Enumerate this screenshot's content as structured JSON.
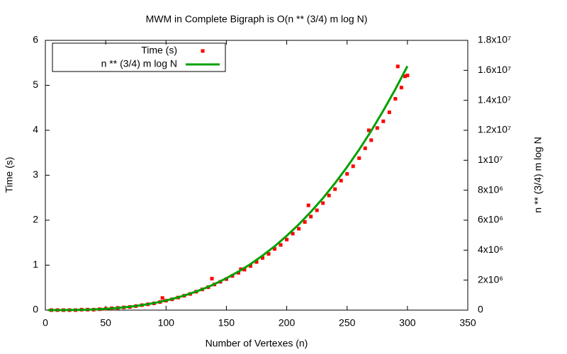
{
  "chart_data": {
    "type": "scatter",
    "title": "MWM in Complete Bigraph is O(n ** (3/4) m log N)",
    "x_label": "Number of Vertexes (n)",
    "y_label": "Time (s)",
    "y2_label": "n ** (3/4) m log N",
    "xlim": [
      0,
      350
    ],
    "xticks": [
      0,
      50,
      100,
      150,
      200,
      250,
      300,
      350
    ],
    "ylim": [
      0,
      6
    ],
    "yticks": [
      0,
      1,
      2,
      3,
      4,
      5,
      6
    ],
    "y2lim": [
      0,
      18000000
    ],
    "y2ticks": [
      {
        "value": 0,
        "label": "0"
      },
      {
        "value": 2000000,
        "label": "2x10⁶"
      },
      {
        "value": 4000000,
        "label": "4x10⁶"
      },
      {
        "value": 6000000,
        "label": "6x10⁶"
      },
      {
        "value": 8000000,
        "label": "8x10⁶"
      },
      {
        "value": 10000000,
        "label": "1x10⁷"
      },
      {
        "value": 12000000,
        "label": "1.2x10⁷"
      },
      {
        "value": 14000000,
        "label": "1.4x10⁷"
      },
      {
        "value": 16000000,
        "label": "1.6x10⁷"
      },
      {
        "value": 18000000,
        "label": "1.8x10⁷"
      }
    ],
    "legend": "top-left",
    "series": [
      {
        "name": "Time (s)",
        "color": "#ff0000",
        "type": "scatter",
        "x": [
          5,
          10,
          15,
          20,
          25,
          30,
          35,
          40,
          45,
          50,
          55,
          60,
          65,
          70,
          75,
          80,
          85,
          90,
          95,
          97,
          100,
          105,
          110,
          115,
          120,
          125,
          130,
          135,
          138,
          140,
          145,
          150,
          155,
          160,
          162,
          165,
          170,
          175,
          180,
          185,
          190,
          195,
          200,
          205,
          210,
          215,
          218,
          220,
          225,
          230,
          235,
          240,
          245,
          250,
          255,
          260,
          265,
          268,
          270,
          275,
          280,
          285,
          290,
          292,
          295,
          298,
          300
        ],
        "values": [
          0,
          0,
          0,
          0,
          0,
          0.01,
          0.01,
          0.01,
          0.02,
          0.03,
          0.04,
          0.05,
          0.06,
          0.07,
          0.09,
          0.11,
          0.13,
          0.15,
          0.18,
          0.27,
          0.21,
          0.24,
          0.28,
          0.32,
          0.36,
          0.41,
          0.46,
          0.51,
          0.7,
          0.57,
          0.63,
          0.69,
          0.76,
          0.83,
          0.91,
          0.9,
          0.98,
          1.07,
          1.16,
          1.25,
          1.36,
          1.45,
          1.57,
          1.7,
          1.81,
          1.96,
          2.33,
          2.08,
          2.22,
          2.38,
          2.55,
          2.69,
          2.88,
          3.03,
          3.2,
          3.38,
          3.6,
          4.0,
          3.78,
          4.05,
          4.2,
          4.4,
          4.7,
          5.42,
          4.95,
          5.2,
          5.22
        ]
      },
      {
        "name": "n ** (3/4) m log N",
        "color": "#00a000",
        "type": "line",
        "axis": "y2",
        "x": [
          2,
          10,
          20,
          30,
          40,
          50,
          60,
          70,
          80,
          90,
          100,
          110,
          120,
          130,
          140,
          150,
          160,
          170,
          180,
          190,
          200,
          210,
          220,
          230,
          240,
          250,
          260,
          270,
          280,
          290,
          300
        ],
        "values": [
          2,
          570,
          4990,
          17300,
          41300,
          80900,
          140000,
          222000,
          330000,
          469000,
          641000,
          850000,
          1100000,
          1390000,
          1730000,
          2130000,
          2570000,
          3070000,
          3640000,
          4260000,
          4960000,
          5720000,
          6560000,
          7470000,
          8470000,
          9550000,
          10710000,
          11960000,
          13310000,
          14740000,
          16280000
        ]
      }
    ]
  }
}
